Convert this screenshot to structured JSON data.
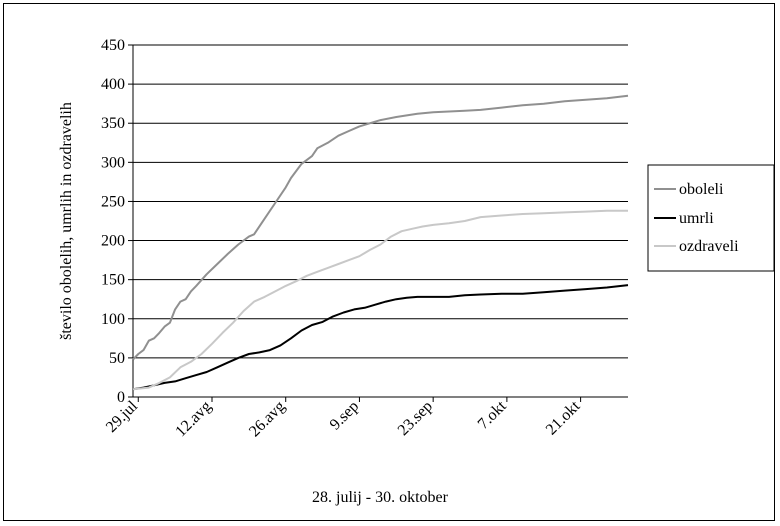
{
  "chart_data": {
    "type": "line",
    "title": "",
    "xlabel": "28. julij - 30. oktober",
    "ylabel": "število obolelih, umrlih in ozdravelih",
    "ylim": [
      0,
      450
    ],
    "yticks": [
      0,
      50,
      100,
      150,
      200,
      250,
      300,
      350,
      400,
      450
    ],
    "x_tick_labels": [
      "29.jul",
      "12.avg",
      "26.avg",
      "9.sep",
      "23.sep",
      "7.okt",
      "21.okt"
    ],
    "x_tick_days": [
      1,
      15,
      29,
      43,
      57,
      71,
      85
    ],
    "x_range_days": [
      0,
      94
    ],
    "grid": "horizontal",
    "legend_position": "right",
    "series": [
      {
        "name": "oboleli",
        "color": "#909090",
        "x": [
          0,
          1,
          2,
          3,
          4,
          5,
          6,
          7,
          8,
          9,
          10,
          11,
          12,
          14,
          16,
          18,
          20,
          22,
          23,
          25,
          27,
          29,
          30,
          32,
          34,
          35,
          37,
          39,
          41,
          43,
          45,
          47,
          50,
          52,
          54,
          57,
          60,
          63,
          66,
          70,
          74,
          78,
          82,
          86,
          90,
          94
        ],
        "y": [
          48,
          55,
          60,
          72,
          75,
          82,
          90,
          95,
          112,
          122,
          125,
          135,
          142,
          157,
          170,
          183,
          195,
          205,
          208,
          228,
          248,
          268,
          280,
          298,
          308,
          318,
          325,
          334,
          340,
          346,
          350,
          354,
          358,
          360,
          362,
          364,
          365,
          366,
          367,
          370,
          373,
          375,
          378,
          380,
          382,
          385
        ]
      },
      {
        "name": "umrli",
        "color": "#000000",
        "x": [
          0,
          2,
          4,
          6,
          8,
          10,
          12,
          14,
          16,
          18,
          20,
          22,
          24,
          26,
          28,
          30,
          32,
          34,
          36,
          38,
          40,
          42,
          44,
          46,
          48,
          50,
          52,
          54,
          57,
          60,
          63,
          66,
          70,
          74,
          78,
          82,
          86,
          90,
          94
        ],
        "y": [
          10,
          12,
          15,
          18,
          20,
          24,
          28,
          32,
          38,
          44,
          50,
          55,
          57,
          60,
          66,
          75,
          85,
          92,
          96,
          103,
          108,
          112,
          114,
          118,
          122,
          125,
          127,
          128,
          128,
          128,
          130,
          131,
          132,
          132,
          134,
          136,
          138,
          140,
          143
        ]
      },
      {
        "name": "ozdraveli",
        "color": "#c8c8c8",
        "x": [
          0,
          3,
          5,
          7,
          9,
          11,
          13,
          15,
          17,
          19,
          21,
          23,
          25,
          27,
          29,
          31,
          33,
          35,
          37,
          39,
          41,
          43,
          45,
          47,
          49,
          51,
          53,
          55,
          57,
          60,
          63,
          66,
          70,
          74,
          78,
          82,
          86,
          90,
          94
        ],
        "y": [
          10,
          12,
          18,
          25,
          38,
          45,
          55,
          68,
          82,
          95,
          110,
          122,
          128,
          135,
          142,
          148,
          155,
          160,
          165,
          170,
          175,
          180,
          188,
          195,
          205,
          212,
          215,
          218,
          220,
          222,
          225,
          230,
          232,
          234,
          235,
          236,
          237,
          238,
          238
        ]
      }
    ]
  }
}
